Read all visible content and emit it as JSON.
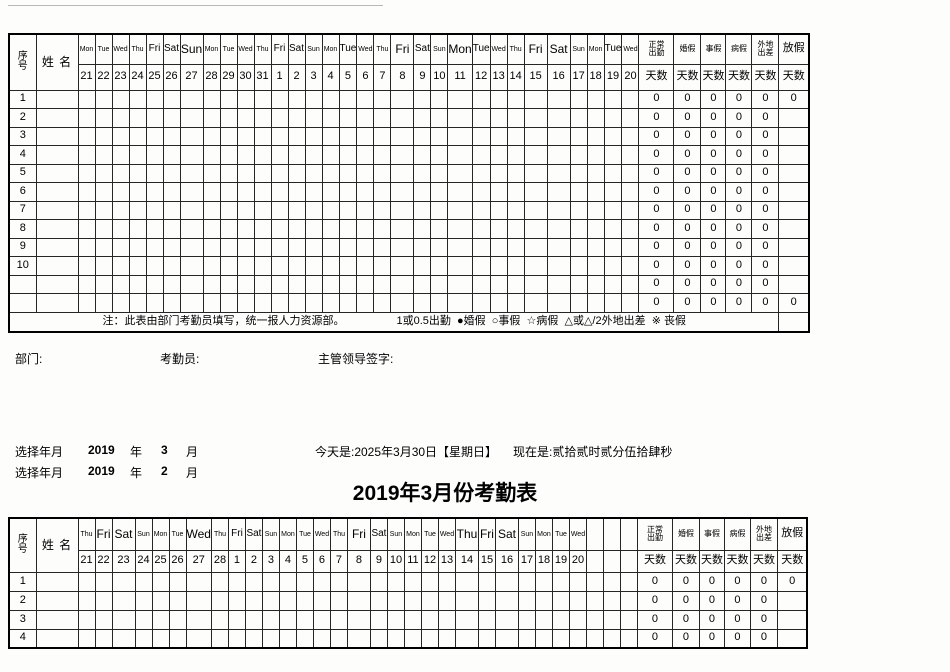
{
  "title": "2019年3月份考勤表",
  "header_labels": {
    "seq_line1": "序",
    "seq_line2": "号",
    "name": "姓 名",
    "days_count_label": "天数"
  },
  "summary_columns": [
    {
      "key": "normal",
      "label_lines": [
        "正常",
        "出勤"
      ],
      "size": "s",
      "align": "left"
    },
    {
      "key": "marriage",
      "label_lines": [
        "婚假"
      ],
      "size": "s"
    },
    {
      "key": "personal",
      "label_lines": [
        "事假"
      ],
      "size": "s"
    },
    {
      "key": "sick",
      "label_lines": [
        "病假"
      ],
      "size": "s"
    },
    {
      "key": "trip",
      "label_lines": [
        "外地",
        "出差"
      ],
      "size": "s",
      "align": "left"
    },
    {
      "key": "holiday",
      "label_lines": [
        "放假"
      ],
      "size": "l"
    }
  ],
  "note": {
    "text": "注：此表由部门考勤员填写，统一报人力资源部。",
    "legend": "1或0.5出勤  ●婚假  ○事假  ☆病假  △或△/2外地出差  ※ 丧假"
  },
  "signatures": {
    "department": "部门:",
    "recorder": "考勤员:",
    "supervisor": "主管领导签字:"
  },
  "selectors": [
    {
      "label": "选择年月",
      "year": "2019",
      "year_suffix": "年",
      "month": "3",
      "month_suffix": "月"
    },
    {
      "label": "选择年月",
      "year": "2019",
      "year_suffix": "年",
      "month": "2",
      "month_suffix": "月"
    }
  ],
  "datetime": {
    "today": "今天是:2025年3月30日【星期日】",
    "now": "现在是:贰拾贰时贰分伍拾肆秒"
  },
  "table_top": {
    "days": [
      {
        "wd": "Mon",
        "day": "21",
        "size": "s"
      },
      {
        "wd": "Tue",
        "day": "22",
        "size": "s"
      },
      {
        "wd": "Wed",
        "day": "23",
        "size": "s"
      },
      {
        "wd": "Thu",
        "day": "24",
        "size": "s"
      },
      {
        "wd": "Fri",
        "day": "25",
        "size": "m"
      },
      {
        "wd": "Sat",
        "day": "26",
        "size": "m"
      },
      {
        "wd": "Sun",
        "day": "27",
        "size": "l",
        "wide": true
      },
      {
        "wd": "Mon",
        "day": "28",
        "size": "s"
      },
      {
        "wd": "Tue",
        "day": "29",
        "size": "s"
      },
      {
        "wd": "Wed",
        "day": "30",
        "size": "s"
      },
      {
        "wd": "Thu",
        "day": "31",
        "size": "s"
      },
      {
        "wd": "Fri",
        "day": "1",
        "size": "m"
      },
      {
        "wd": "Sat",
        "day": "2",
        "size": "m"
      },
      {
        "wd": "Sun",
        "day": "3",
        "size": "s"
      },
      {
        "wd": "Mon",
        "day": "4",
        "size": "s"
      },
      {
        "wd": "Tue",
        "day": "5",
        "size": "m"
      },
      {
        "wd": "Wed",
        "day": "6",
        "size": "s"
      },
      {
        "wd": "Thu",
        "day": "7",
        "size": "s"
      },
      {
        "wd": "Fri",
        "day": "8",
        "size": "l",
        "wide": true
      },
      {
        "wd": "Sat",
        "day": "9",
        "size": "m"
      },
      {
        "wd": "Sun",
        "day": "10",
        "size": "s"
      },
      {
        "wd": "Mon",
        "day": "11",
        "size": "l",
        "wide": true
      },
      {
        "wd": "Tue",
        "day": "12",
        "size": "m"
      },
      {
        "wd": "Wed",
        "day": "13",
        "size": "s"
      },
      {
        "wd": "Thu",
        "day": "14",
        "size": "s"
      },
      {
        "wd": "Fri",
        "day": "15",
        "size": "l",
        "wide": true
      },
      {
        "wd": "Sat",
        "day": "16",
        "size": "l",
        "wide": true
      },
      {
        "wd": "Sun",
        "day": "17",
        "size": "s"
      },
      {
        "wd": "Mon",
        "day": "18",
        "size": "s"
      },
      {
        "wd": "Tue",
        "day": "19",
        "size": "m"
      },
      {
        "wd": "Wed",
        "day": "20",
        "size": "s"
      }
    ],
    "rows": [
      {
        "no": "1",
        "normal": "0",
        "marriage": "0",
        "personal": "0",
        "sick": "0",
        "trip": "0",
        "holiday": "0"
      },
      {
        "no": "2",
        "normal": "0",
        "marriage": "0",
        "personal": "0",
        "sick": "0",
        "trip": "0",
        "holiday": ""
      },
      {
        "no": "3",
        "normal": "0",
        "marriage": "0",
        "personal": "0",
        "sick": "0",
        "trip": "0",
        "holiday": ""
      },
      {
        "no": "4",
        "normal": "0",
        "marriage": "0",
        "personal": "0",
        "sick": "0",
        "trip": "0",
        "holiday": ""
      },
      {
        "no": "5",
        "normal": "0",
        "marriage": "0",
        "personal": "0",
        "sick": "0",
        "trip": "0",
        "holiday": ""
      },
      {
        "no": "6",
        "normal": "0",
        "marriage": "0",
        "personal": "0",
        "sick": "0",
        "trip": "0",
        "holiday": ""
      },
      {
        "no": "7",
        "normal": "0",
        "marriage": "0",
        "personal": "0",
        "sick": "0",
        "trip": "0",
        "holiday": ""
      },
      {
        "no": "8",
        "normal": "0",
        "marriage": "0",
        "personal": "0",
        "sick": "0",
        "trip": "0",
        "holiday": ""
      },
      {
        "no": "9",
        "normal": "0",
        "marriage": "0",
        "personal": "0",
        "sick": "0",
        "trip": "0",
        "holiday": ""
      },
      {
        "no": "10",
        "normal": "0",
        "marriage": "0",
        "personal": "0",
        "sick": "0",
        "trip": "0",
        "holiday": ""
      },
      {
        "no": "",
        "normal": "0",
        "marriage": "0",
        "personal": "0",
        "sick": "0",
        "trip": "0",
        "holiday": ""
      },
      {
        "no": "",
        "normal": "0",
        "marriage": "0",
        "personal": "0",
        "sick": "0",
        "trip": "0",
        "holiday": "0"
      }
    ],
    "show_note": true
  },
  "table_bottom": {
    "days": [
      {
        "wd": "Thu",
        "day": "21",
        "size": "s"
      },
      {
        "wd": "Fri",
        "day": "22",
        "size": "l"
      },
      {
        "wd": "Sat",
        "day": "23",
        "size": "l",
        "wide": true
      },
      {
        "wd": "Sun",
        "day": "24",
        "size": "s"
      },
      {
        "wd": "Mon",
        "day": "25",
        "size": "s"
      },
      {
        "wd": "Tue",
        "day": "26",
        "size": "s"
      },
      {
        "wd": "Wed",
        "day": "27",
        "size": "l",
        "wide": true
      },
      {
        "wd": "Thu",
        "day": "28",
        "size": "s"
      },
      {
        "wd": "Fri",
        "day": "1",
        "size": "m"
      },
      {
        "wd": "Sat",
        "day": "2",
        "size": "m"
      },
      {
        "wd": "Sun",
        "day": "3",
        "size": "s"
      },
      {
        "wd": "Mon",
        "day": "4",
        "size": "s"
      },
      {
        "wd": "Tue",
        "day": "5",
        "size": "s"
      },
      {
        "wd": "Wed",
        "day": "6",
        "size": "s"
      },
      {
        "wd": "Thu",
        "day": "7",
        "size": "s"
      },
      {
        "wd": "Fri",
        "day": "8",
        "size": "l",
        "wide": true
      },
      {
        "wd": "Sat",
        "day": "9",
        "size": "m"
      },
      {
        "wd": "Sun",
        "day": "10",
        "size": "s"
      },
      {
        "wd": "Mon",
        "day": "11",
        "size": "s"
      },
      {
        "wd": "Tue",
        "day": "12",
        "size": "s"
      },
      {
        "wd": "Wed",
        "day": "13",
        "size": "s"
      },
      {
        "wd": "Thu",
        "day": "14",
        "size": "l",
        "wide": true
      },
      {
        "wd": "Fri",
        "day": "15",
        "size": "l"
      },
      {
        "wd": "Sat",
        "day": "16",
        "size": "l",
        "wide": true
      },
      {
        "wd": "Sun",
        "day": "17",
        "size": "s"
      },
      {
        "wd": "Mon",
        "day": "18",
        "size": "s"
      },
      {
        "wd": "Tue",
        "day": "19",
        "size": "s"
      },
      {
        "wd": "Wed",
        "day": "20",
        "size": "s"
      },
      {
        "wd": "",
        "day": "",
        "size": "s"
      },
      {
        "wd": "",
        "day": "",
        "size": "s"
      },
      {
        "wd": "",
        "day": "",
        "size": "s"
      }
    ],
    "rows": [
      {
        "no": "1",
        "normal": "0",
        "marriage": "0",
        "personal": "0",
        "sick": "0",
        "trip": "0",
        "holiday": "0"
      },
      {
        "no": "2",
        "normal": "0",
        "marriage": "0",
        "personal": "0",
        "sick": "0",
        "trip": "0",
        "holiday": ""
      },
      {
        "no": "3",
        "normal": "0",
        "marriage": "0",
        "personal": "0",
        "sick": "0",
        "trip": "0",
        "holiday": ""
      },
      {
        "no": "4",
        "normal": "0",
        "marriage": "0",
        "personal": "0",
        "sick": "0",
        "trip": "0",
        "holiday": ""
      }
    ],
    "show_note": false
  }
}
